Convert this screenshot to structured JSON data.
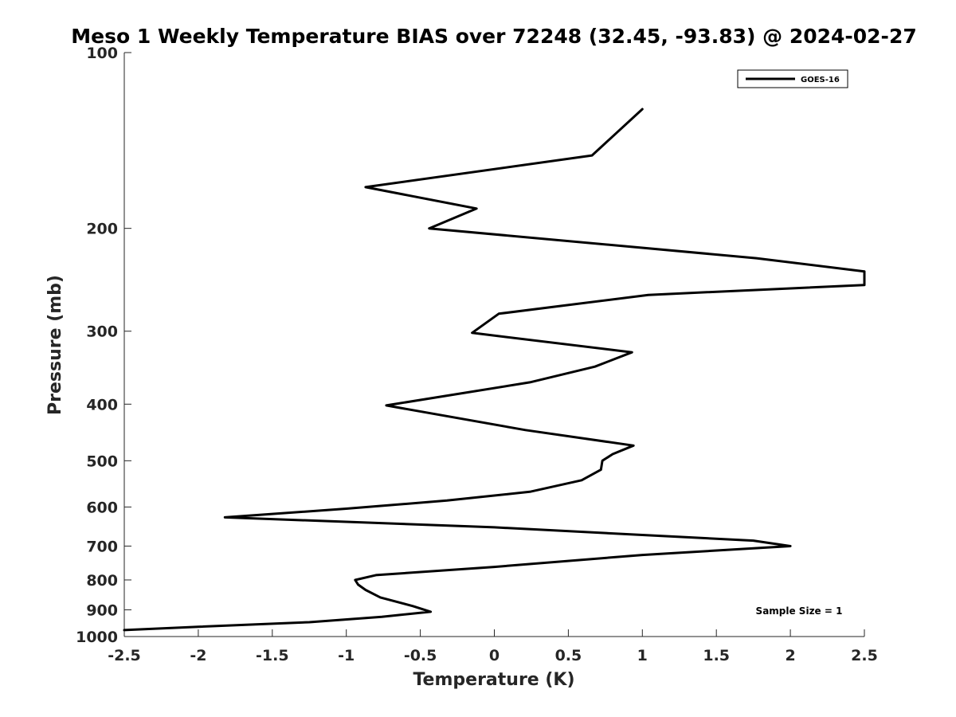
{
  "chart_data": {
    "type": "line",
    "title": "Meso 1 Weekly Temperature BIAS over 72248 (32.45, -93.83) @ 2024-02-27",
    "xlabel": "Temperature (K)",
    "ylabel": "Pressure (mb)",
    "xlim": [
      -2.5,
      2.5
    ],
    "ylim": [
      1000,
      100
    ],
    "y_scale": "log",
    "x_ticks": [
      -2.5,
      -2,
      -1.5,
      -1,
      -0.5,
      0,
      0.5,
      1,
      1.5,
      2,
      2.5
    ],
    "x_tick_labels": [
      "-2.5",
      "-2",
      "-1.5",
      "-1",
      "-0.5",
      "0",
      "0.5",
      "1",
      "1.5",
      "2",
      "2.5"
    ],
    "y_ticks": [
      100,
      200,
      300,
      400,
      500,
      600,
      700,
      800,
      900,
      1000
    ],
    "y_tick_labels": [
      "100",
      "200",
      "300",
      "400",
      "500",
      "600",
      "700",
      "800",
      "900",
      "1000"
    ],
    "grid": false,
    "legend": {
      "position": "top-right",
      "entries": [
        "GOES-16"
      ]
    },
    "annotation": "Sample Size = 1",
    "series": [
      {
        "name": "GOES-16",
        "color": "#000000",
        "x": [
          1.0,
          0.66,
          -0.87,
          -0.12,
          -0.44,
          1.77,
          2.5,
          2.5,
          1.04,
          0.03,
          -0.15,
          0.93,
          0.68,
          0.24,
          -0.73,
          0.21,
          0.94,
          0.8,
          0.73,
          0.72,
          0.59,
          0.24,
          -0.32,
          -1.0,
          -1.82,
          0.0,
          1.0,
          1.75,
          2.0,
          1.0,
          0.0,
          -0.8,
          -0.94,
          -0.92,
          -0.87,
          -0.77,
          -0.55,
          -0.43,
          -0.76,
          -1.25,
          -2.0,
          -2.5
        ],
        "y": [
          125,
          150,
          170,
          185,
          200,
          225,
          237,
          250,
          260,
          280,
          302,
          326,
          345,
          367,
          402,
          443,
          471,
          487,
          500,
          518,
          540,
          565,
          585,
          604,
          625,
          650,
          670,
          685,
          700,
          725,
          760,
          785,
          800,
          815,
          832,
          857,
          887,
          907,
          925,
          945,
          962,
          975
        ]
      }
    ]
  }
}
